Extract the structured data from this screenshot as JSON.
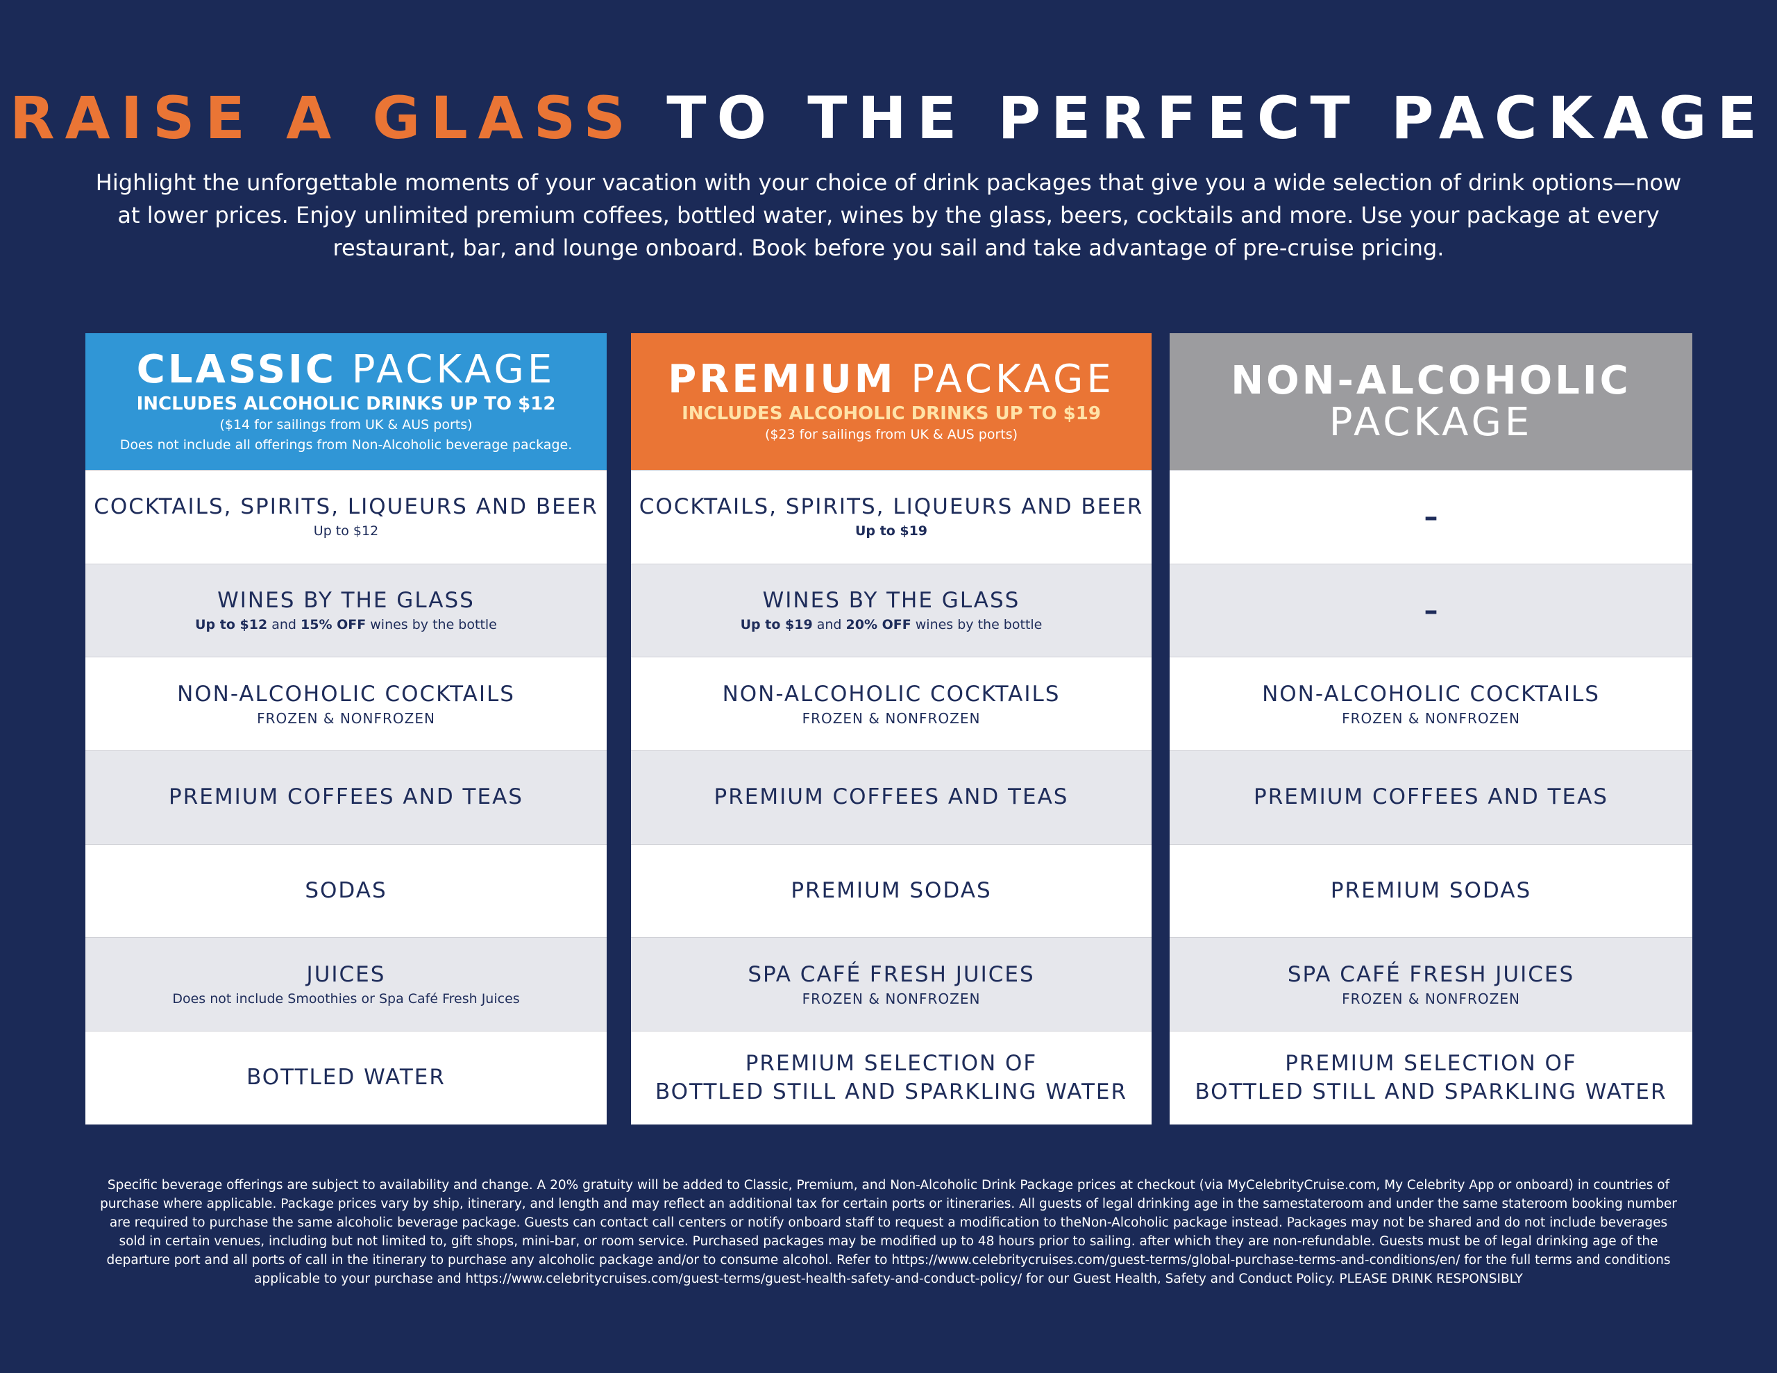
{
  "title": {
    "accent": "RAISE A GLASS",
    "rest": "TO THE PERFECT PACKAGE"
  },
  "intro": "Highlight the unforgettable moments of your vacation with your choice of drink packages that give you a wide selection of drink options—now at lower prices. Enjoy unlimited premium coffees, bottled water, wines by the glass, beers, cocktails and more. Use your package at every restaurant, bar, and lounge onboard. Book before you sail and take advantage of pre-cruise pricing.",
  "colors": {
    "background": "#1b2a57",
    "accent_orange": "#ea7535",
    "classic_blue": "#3096d6",
    "nonalcoholic_gray": "#9c9c9f",
    "text_navy": "#1e2c5a"
  },
  "packages": {
    "classic": {
      "name_bold": "CLASSIC",
      "name_light": "PACKAGE",
      "includes": "INCLUDES ALCOHOLIC DRINKS UP TO $12",
      "note1": "($14 for sailings from UK & AUS ports)",
      "note2": "Does not include all offerings from Non-Alcoholic beverage package.",
      "rows": {
        "cocktails": {
          "label": "COCKTAILS, SPIRITS, LIQUEURS AND BEER",
          "detail": "Up to $12"
        },
        "wines": {
          "label": "WINES BY THE GLASS",
          "price": "Up to $12",
          "and": " and ",
          "discount": "15% OFF",
          "tail": " wines by the bottle"
        },
        "nonalc_cocktails": {
          "label": "NON-ALCOHOLIC COCKTAILS",
          "sub": "FROZEN & NONFROZEN"
        },
        "coffees": {
          "label": "PREMIUM COFFEES AND TEAS"
        },
        "sodas": {
          "label": "SODAS"
        },
        "juices": {
          "label": "JUICES",
          "detail": "Does not include Smoothies or Spa Café Fresh Juices"
        },
        "water": {
          "label": "BOTTLED WATER"
        }
      }
    },
    "premium": {
      "name_bold": "PREMIUM",
      "name_light": "PACKAGE",
      "includes": "INCLUDES ALCOHOLIC DRINKS UP TO $19",
      "note1": "($23 for sailings from UK & AUS ports)",
      "rows": {
        "cocktails": {
          "label": "COCKTAILS, SPIRITS, LIQUEURS AND BEER",
          "detail": "Up to $19"
        },
        "wines": {
          "label": "WINES BY THE GLASS",
          "price": "Up to $19",
          "and": " and ",
          "discount": "20% OFF",
          "tail": " wines by the bottle"
        },
        "nonalc_cocktails": {
          "label": "NON-ALCOHOLIC COCKTAILS",
          "sub": "FROZEN & NONFROZEN"
        },
        "coffees": {
          "label": "PREMIUM COFFEES AND TEAS"
        },
        "sodas": {
          "label": "PREMIUM SODAS"
        },
        "juices": {
          "label": "SPA CAFÉ FRESH JUICES",
          "sub": "FROZEN & NONFROZEN"
        },
        "water": {
          "label1": "PREMIUM SELECTION OF",
          "label2": "BOTTLED STILL AND SPARKLING WATER"
        }
      }
    },
    "nonalcoholic": {
      "name_bold": "NON-ALCOHOLIC",
      "name_light": "PACKAGE",
      "rows": {
        "cocktails": {
          "dash": "–"
        },
        "wines": {
          "dash": "–"
        },
        "nonalc_cocktails": {
          "label": "NON-ALCOHOLIC COCKTAILS",
          "sub": "FROZEN & NONFROZEN"
        },
        "coffees": {
          "label": "PREMIUM COFFEES AND TEAS"
        },
        "sodas": {
          "label": "PREMIUM SODAS"
        },
        "juices": {
          "label": "SPA CAFÉ FRESH JUICES",
          "sub": "FROZEN & NONFROZEN"
        },
        "water": {
          "label1": "PREMIUM SELECTION OF",
          "label2": "BOTTLED STILL AND SPARKLING WATER"
        }
      }
    }
  },
  "footer": "Specific beverage offerings are subject to availability and change. A 20% gratuity will be added to Classic, Premium, and Non-Alcoholic Drink Package prices at checkout (via MyCelebrityCruise.com, My Celebrity App or onboard) in countries of purchase where applicable. Package prices vary by ship, itinerary, and length and may reflect an additional tax for certain ports or itineraries. All guests of legal drinking age in the samestateroom and under the same stateroom booking number are required to purchase the same alcoholic beverage package. Guests can contact call centers or notify onboard staff to request a modification to theNon-Alcoholic package instead. Packages may not be shared and do not include beverages sold in certain venues, including but not limited to, gift shops, mini-bar, or room service. Purchased packages may be modified up to 48 hours prior to sailing. after which they are non-refundable. Guests must be of legal drinking age of the departure port and all ports of call in the itinerary to purchase any alcoholic package and/or to consume alcohol. Refer to https://www.celebritycruises.com/guest-terms/global-purchase-terms-and-conditions/en/ for the full terms and conditions applicable to your purchase and https://www.celebritycruises.com/guest-terms/guest-health-safety-and-conduct-policy/ for our Guest Health, Safety and Conduct Policy. PLEASE DRINK RESPONSIBLY"
}
